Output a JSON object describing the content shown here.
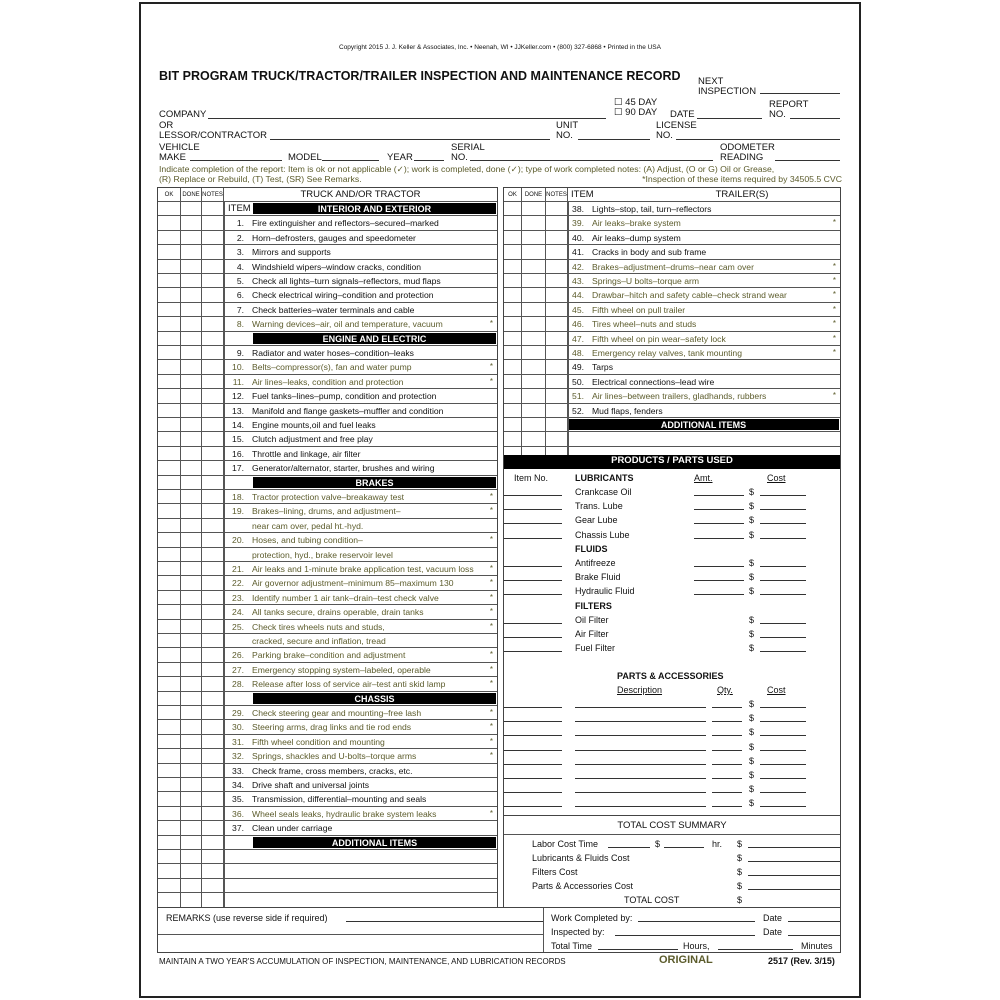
{
  "copyright": "Copyright 2015 J. J. Keller & Associates, Inc. • Neenah, WI • JJKeller.com • (800) 327-6868 • Printed in the USA",
  "title": "BIT PROGRAM TRUCK/TRACTOR/TRAILER INSPECTION AND MAINTENANCE RECORD",
  "fields": {
    "next_inspection_1": "NEXT",
    "next_inspection_2": "INSPECTION",
    "day45": "☐ 45 DAY",
    "day90": "☐ 90 DAY",
    "date": "DATE",
    "report1": "REPORT",
    "report2": "NO.",
    "company": "COMPANY",
    "or": "OR",
    "lessor": "LESSOR/CONTRACTOR",
    "unit1": "UNIT",
    "unit2": "NO.",
    "license1": "LICENSE",
    "license2": "NO.",
    "vehicle1": "VEHICLE",
    "vehicle2": "MAKE",
    "model": "MODEL",
    "year": "YEAR",
    "serial1": "SERIAL",
    "serial2": "NO.",
    "odometer1": "ODOMETER",
    "odometer2": "READING"
  },
  "instructions": {
    "line1": "Indicate completion of the report:  Item is ok or not applicable (✓); work is completed, done (✓); type of work completed notes: (A) Adjust, (O or G) Oil or Grease,",
    "line2": "(R) Replace or Rebuild, (T) Test, (SR) See Remarks.",
    "note": "*Inspection of these items required by 34505.5 CVC"
  },
  "col_headers": {
    "ok": "OK",
    "done": "DONE",
    "notes": "NOTES",
    "item": "ITEM",
    "truck": "TRUCK AND/OR TRACTOR",
    "trailers": "TRAILER(S)"
  },
  "left_rows": [
    {
      "t": "itemhdr",
      "text": "INTERIOR AND EXTERIOR"
    },
    {
      "n": "1.",
      "text": "Fire extinguisher and reflectors–secured–marked"
    },
    {
      "n": "2.",
      "text": "Horn–defrosters, gauges and speedometer"
    },
    {
      "n": "3.",
      "text": "Mirrors and supports"
    },
    {
      "n": "4.",
      "text": "Windshield wipers–window cracks, condition"
    },
    {
      "n": "5.",
      "text": "Check all lights–turn signals–reflectors, mud flaps"
    },
    {
      "n": "6.",
      "text": "Check electrical wiring–condition and protection"
    },
    {
      "n": "7.",
      "text": "Check batteries–water terminals and cable"
    },
    {
      "n": "8.",
      "text": "Warning devices–air, oil and temperature, vacuum",
      "s": true
    },
    {
      "t": "bar",
      "text": "ENGINE AND ELECTRIC"
    },
    {
      "n": "9.",
      "text": "Radiator and water hoses–condition–leaks"
    },
    {
      "n": "10.",
      "text": "Belts–compressor(s), fan and water pump",
      "s": true
    },
    {
      "n": "11.",
      "text": "Air lines–leaks, condition and protection",
      "s": true
    },
    {
      "n": "12.",
      "text": "Fuel tanks–lines–pump, condition and protection"
    },
    {
      "n": "13.",
      "text": "Manifold and flange gaskets–muffler and condition"
    },
    {
      "n": "14.",
      "text": "Engine mounts,oil and fuel leaks"
    },
    {
      "n": "15.",
      "text": "Clutch adjustment and free play"
    },
    {
      "n": "16.",
      "text": "Throttle and linkage, air filter"
    },
    {
      "n": "17.",
      "text": "Generator/alternator, starter, brushes and wiring"
    },
    {
      "t": "bar",
      "text": "BRAKES"
    },
    {
      "n": "18.",
      "text": "Tractor protection valve–breakaway test",
      "s": true
    },
    {
      "n": "19.",
      "text": "Brakes–lining, drums, and adjustment–",
      "s": true
    },
    {
      "t": "cont",
      "text": "near cam over, pedal ht.-hyd.",
      "s": true
    },
    {
      "n": "20.",
      "text": "Hoses, and tubing condition–",
      "s": true
    },
    {
      "t": "cont",
      "text": "protection, hyd., brake reservoir level",
      "s": true
    },
    {
      "n": "21.",
      "text": "Air leaks and 1-minute brake application test, vacuum loss",
      "s": true
    },
    {
      "n": "22.",
      "text": "Air governor adjustment–minimum 85–maximum 130",
      "s": true
    },
    {
      "n": "23.",
      "text": "Identify number 1 air tank–drain–test check valve",
      "s": true
    },
    {
      "n": "24.",
      "text": "All tanks secure, drains operable, drain tanks",
      "s": true
    },
    {
      "n": "25.",
      "text": "Check tires wheels nuts and studs,",
      "s": true
    },
    {
      "t": "cont",
      "text": "cracked, secure and inflation, tread",
      "s": true
    },
    {
      "n": "26.",
      "text": "Parking brake–condition and adjustment",
      "s": true
    },
    {
      "n": "27.",
      "text": "Emergency stopping system–labeled, operable",
      "s": true
    },
    {
      "n": "28.",
      "text": "Release after loss of service air–test anti skid lamp",
      "s": true
    },
    {
      "t": "bar",
      "text": "CHASSIS"
    },
    {
      "n": "29.",
      "text": "Check steering gear and mounting–free lash",
      "s": true
    },
    {
      "n": "30.",
      "text": "Steering arms, drag links and tie rod ends",
      "s": true
    },
    {
      "n": "31.",
      "text": "Fifth wheel condition and mounting",
      "s": true
    },
    {
      "n": "32.",
      "text": "Springs, shackles and U-bolts–torque arms",
      "s": true
    },
    {
      "n": "33.",
      "text": "Check frame, cross members, cracks, etc."
    },
    {
      "n": "34.",
      "text": "Drive shaft and universal joints"
    },
    {
      "n": "35.",
      "text": "Transmission, differential–mounting and seals"
    },
    {
      "n": "36.",
      "text": "Wheel seals leaks, hydraulic brake system leaks",
      "s": true
    },
    {
      "n": "37.",
      "text": "Clean under carriage"
    },
    {
      "t": "bar",
      "text": "ADDITIONAL ITEMS"
    },
    {
      "t": "blank"
    },
    {
      "t": "blank"
    },
    {
      "t": "blank"
    },
    {
      "t": "blank"
    }
  ],
  "right_rows": [
    {
      "n": "38.",
      "text": "Lights–stop, tail, turn–reflectors"
    },
    {
      "n": "39.",
      "text": "Air leaks–brake system",
      "s": true
    },
    {
      "n": "40.",
      "text": "Air leaks–dump system"
    },
    {
      "n": "41.",
      "text": "Cracks in body and sub frame"
    },
    {
      "n": "42.",
      "text": "Brakes–adjustment–drums–near cam over",
      "s": true
    },
    {
      "n": "43.",
      "text": "Springs–U bolts–torque arm",
      "s": true
    },
    {
      "n": "44.",
      "text": "Drawbar–hitch and safety cable–check strand wear",
      "s": true
    },
    {
      "n": "45.",
      "text": "Fifth wheel on pull trailer",
      "s": true
    },
    {
      "n": "46.",
      "text": "Tires wheel–nuts and studs",
      "s": true
    },
    {
      "n": "47.",
      "text": "Fifth wheel on pin wear–safety lock",
      "s": true
    },
    {
      "n": "48.",
      "text": "Emergency relay valves, tank mounting",
      "s": true
    },
    {
      "n": "49.",
      "text": "Tarps"
    },
    {
      "n": "50.",
      "text": "Electrical connections–lead wire"
    },
    {
      "n": "51.",
      "text": "Air lines–between trailers, gladhands, rubbers",
      "s": true
    },
    {
      "n": "52.",
      "text": "Mud flaps, fenders"
    },
    {
      "t": "bar",
      "text": "ADDITIONAL ITEMS"
    },
    {
      "t": "blank"
    },
    {
      "t": "blank"
    }
  ],
  "star": "*",
  "products": {
    "title": "PRODUCTS / PARTS USED",
    "item_no": "Item No.",
    "amt": "Amt.",
    "cost": "Cost",
    "dollar": "$",
    "groups": [
      {
        "name": "LUBRICANTS",
        "items": [
          "Crankcase Oil",
          "Trans. Lube",
          "Gear Lube",
          "Chassis Lube"
        ],
        "amt": true
      },
      {
        "name": "FLUIDS",
        "items": [
          "Antifreeze",
          "Brake Fluid",
          "Hydraulic Fluid"
        ],
        "amt": true
      },
      {
        "name": "FILTERS",
        "items": [
          "Oil Filter",
          "Air Filter",
          "Fuel Filter"
        ],
        "amt": false
      }
    ],
    "parts_title": "PARTS & ACCESSORIES",
    "description": "Description",
    "qty": "Qty.",
    "parts_rows": 8
  },
  "summary": {
    "title": "TOTAL COST SUMMARY",
    "labor": "Labor Cost Time",
    "hr": "hr.",
    "lubes": "Lubricants & Fluids Cost",
    "filters": "Filters Cost",
    "parts": "Parts & Accessories Cost",
    "total": "TOTAL COST",
    "dollar": "$"
  },
  "remarks": {
    "label": "REMARKS (use reverse side if required)",
    "work_completed": "Work Completed by:",
    "inspected": "Inspected by:",
    "date": "Date",
    "total_time": "Total Time",
    "hours": "Hours,",
    "minutes": "Minutes"
  },
  "footer": {
    "maintain": "MAINTAIN A TWO YEAR'S ACCUMULATION OF INSPECTION, MAINTENANCE, AND LUBRICATION RECORDS",
    "copy": "ORIGINAL",
    "form": "2517 (Rev. 3/15)"
  },
  "colors": {
    "olive": "#5c5c2c",
    "bar": "#000000"
  }
}
